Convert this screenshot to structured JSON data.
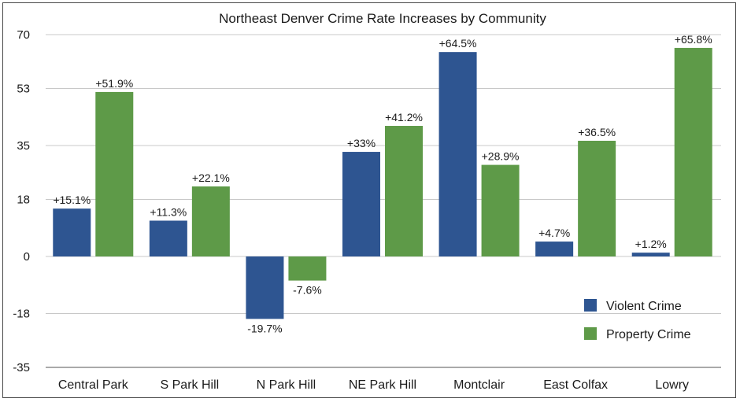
{
  "chart_data": {
    "type": "bar",
    "title": "Northeast Denver Crime Rate Increases by Community",
    "xlabel": "",
    "ylabel": "",
    "ylim": [
      -35,
      70
    ],
    "yticks": [
      70,
      53,
      35,
      18,
      0,
      -18,
      -35
    ],
    "grid": true,
    "legend_position": "bottom-right",
    "categories": [
      "Central Park",
      "S Park Hill",
      "N Park Hill",
      "NE Park Hill",
      "Montclair",
      "East Colfax",
      "Lowry"
    ],
    "series": [
      {
        "name": "Violent Crime",
        "color": "#2e5591",
        "values": [
          15.1,
          11.3,
          -19.7,
          33,
          64.5,
          4.7,
          1.2
        ],
        "labels": [
          "+15.1%",
          "+11.3%",
          "-19.7%",
          "+33%",
          "+64.5%",
          "+4.7%",
          "+1.2%"
        ]
      },
      {
        "name": "Property Crime",
        "color": "#5e9a48",
        "values": [
          51.9,
          22.1,
          -7.6,
          41.2,
          28.9,
          36.5,
          65.8
        ],
        "labels": [
          "+51.9%",
          "+22.1%",
          "-7.6%",
          "+41.2%",
          "+28.9%",
          "+36.5%",
          "+65.8%"
        ]
      }
    ]
  }
}
